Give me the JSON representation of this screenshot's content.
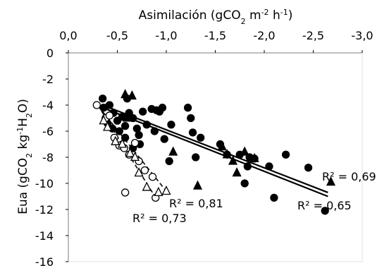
{
  "chart_data": {
    "type": "scatter",
    "title": "",
    "xlabel": "Asimilación (gCO₂ m⁻² h⁻¹)",
    "xlabel_parts": [
      "Asimilación (gCO",
      "2",
      " m",
      "-2",
      " h",
      "-1",
      ")"
    ],
    "ylabel": "Eua (gCO₂ kg⁻¹H₂O)",
    "ylabel_parts": [
      "Eua (gCO",
      "2",
      " kg",
      "-1",
      "H",
      "2",
      "O)"
    ],
    "x_axis_position": "top",
    "x_reversed": true,
    "xlim": [
      0,
      -3.0
    ],
    "ylim": [
      -16,
      0
    ],
    "xticks": [
      0,
      -0.5,
      -1.0,
      -1.5,
      -2.0,
      -2.5,
      -3.0
    ],
    "xtick_labels": [
      "0,0",
      "-0,5",
      "-1,0",
      "-1,5",
      "-2,0",
      "-2,5",
      "-3,0"
    ],
    "yticks": [
      0,
      -2,
      -4,
      -6,
      -8,
      -10,
      -12,
      -14,
      -16
    ],
    "ytick_labels": [
      "0",
      "-2",
      "-4",
      "-6",
      "-8",
      "-10",
      "-12",
      "-14",
      "-16"
    ],
    "grid": false,
    "series": [
      {
        "marker": "filled-circle",
        "trendline": "solid",
        "r2_label": "R² = 0,65",
        "trend": [
          [
            -0.35,
            -4.2
          ],
          [
            -2.65,
            -11.0
          ]
        ],
        "points": [
          [
            -0.35,
            -3.5
          ],
          [
            -0.36,
            -4.2
          ],
          [
            -0.42,
            -4.0
          ],
          [
            -0.4,
            -5.4
          ],
          [
            -0.45,
            -5.8
          ],
          [
            -0.5,
            -5.2
          ],
          [
            -0.52,
            -6.0
          ],
          [
            -0.55,
            -4.9
          ],
          [
            -0.58,
            -5.6
          ],
          [
            -0.6,
            -3.5
          ],
          [
            -0.62,
            -4.6
          ],
          [
            -0.66,
            -5.0
          ],
          [
            -0.7,
            -5.8
          ],
          [
            -0.72,
            -6.3
          ],
          [
            -0.73,
            -7.0
          ],
          [
            -0.76,
            -4.5
          ],
          [
            -0.8,
            -5.5
          ],
          [
            -0.85,
            -4.3
          ],
          [
            -0.88,
            -6.0
          ],
          [
            -0.9,
            -4.4
          ],
          [
            -0.93,
            -4.5
          ],
          [
            -0.96,
            -4.2
          ],
          [
            -0.98,
            -6.6
          ],
          [
            -1.05,
            -5.5
          ],
          [
            -1.03,
            -8.3
          ],
          [
            -1.22,
            -4.2
          ],
          [
            -1.25,
            -5.0
          ],
          [
            -1.27,
            -6.1
          ],
          [
            -1.3,
            -8.0
          ],
          [
            -1.35,
            -6.5
          ],
          [
            -1.55,
            -7.0
          ],
          [
            -1.62,
            -7.8
          ],
          [
            -1.75,
            -7.8
          ],
          [
            -1.8,
            -10.0
          ],
          [
            -1.83,
            -8.7
          ],
          [
            -1.85,
            -8.0
          ],
          [
            -1.9,
            -8.1
          ],
          [
            -2.05,
            -8.7
          ],
          [
            -2.1,
            -11.1
          ],
          [
            -2.22,
            -7.8
          ],
          [
            -2.45,
            -8.8
          ],
          [
            -2.62,
            -12.1
          ],
          [
            -0.66,
            -7.3
          ],
          [
            -0.58,
            -6.5
          ],
          [
            -0.46,
            -4.6
          ]
        ]
      },
      {
        "marker": "filled-triangle",
        "trendline": "solid",
        "r2_label": "R² = 0,69",
        "trend": [
          [
            -0.35,
            -4.0
          ],
          [
            -2.65,
            -10.7
          ]
        ],
        "points": [
          [
            -0.58,
            -3.2
          ],
          [
            -0.65,
            -3.3
          ],
          [
            -0.6,
            -5.0
          ],
          [
            -1.07,
            -7.6
          ],
          [
            -1.32,
            -10.2
          ],
          [
            -1.57,
            -7.2
          ],
          [
            -1.62,
            -7.8
          ],
          [
            -1.68,
            -8.3
          ],
          [
            -1.72,
            -9.2
          ],
          [
            -1.8,
            -7.6
          ],
          [
            -1.9,
            -8.1
          ],
          [
            -2.68,
            -9.9
          ]
        ]
      },
      {
        "marker": "open-circle",
        "trendline": "dashed",
        "r2_label": "R² = 0,73",
        "trend": [
          [
            -0.3,
            -4.0
          ],
          [
            -0.9,
            -11.2
          ]
        ],
        "points": [
          [
            -0.29,
            -4.0
          ],
          [
            -0.38,
            -5.0
          ],
          [
            -0.42,
            -4.8
          ],
          [
            -0.47,
            -6.5
          ],
          [
            -0.52,
            -7.1
          ],
          [
            -0.57,
            -7.3
          ],
          [
            -0.62,
            -7.8
          ],
          [
            -0.68,
            -6.9
          ],
          [
            -0.72,
            -8.3
          ],
          [
            -0.78,
            -9.0
          ],
          [
            -0.86,
            -9.5
          ],
          [
            -0.89,
            -11.1
          ],
          [
            -0.58,
            -10.7
          ]
        ]
      },
      {
        "marker": "open-triangle",
        "trendline": "dashed",
        "r2_label": "R² = 0,81",
        "trend": [
          [
            -0.35,
            -4.5
          ],
          [
            -1.0,
            -10.6
          ]
        ],
        "points": [
          [
            -0.36,
            -5.2
          ],
          [
            -0.4,
            -5.7
          ],
          [
            -0.48,
            -6.8
          ],
          [
            -0.55,
            -7.0
          ],
          [
            -0.63,
            -7.7
          ],
          [
            -0.68,
            -8.0
          ],
          [
            -0.72,
            -9.2
          ],
          [
            -0.8,
            -10.3
          ],
          [
            -0.92,
            -10.7
          ],
          [
            -1.0,
            -10.6
          ]
        ]
      }
    ]
  }
}
